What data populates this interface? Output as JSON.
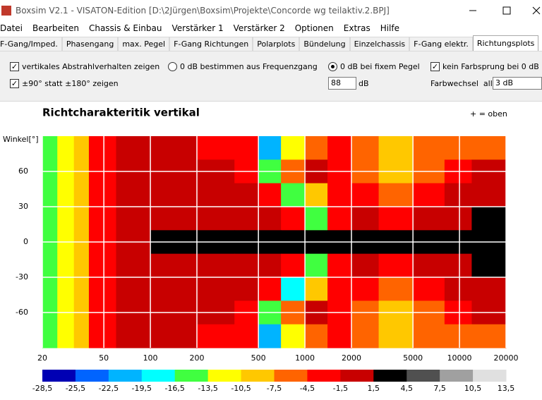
{
  "window": {
    "title": "Boxsim V2.1 - VISATON-Edition [D:\\2Jürgen\\Boxsim\\Projekte\\Concorde wg teilaktiv.2.BPJ]"
  },
  "menu": [
    "Datei",
    "Bearbeiten",
    "Chassis & Einbau",
    "Verstärker 1",
    "Verstärker 2",
    "Optionen",
    "Extras",
    "Hilfe"
  ],
  "tabs": [
    {
      "label": "F-Gang/Imped.",
      "active": false
    },
    {
      "label": "Phasengang",
      "active": false
    },
    {
      "label": "max. Pegel",
      "active": false
    },
    {
      "label": "F-Gang Richtungen",
      "active": false
    },
    {
      "label": "Polarplots",
      "active": false
    },
    {
      "label": "Bündelung",
      "active": false
    },
    {
      "label": "Einzelchassis",
      "active": false
    },
    {
      "label": "F-Gang elektr.",
      "active": false
    },
    {
      "label": "Richtungsplots",
      "active": true
    }
  ],
  "options": {
    "vertical": {
      "label": "vertikales Abstrahlverhalten zeigen",
      "checked": true
    },
    "range90": {
      "label": "±90° statt ±180° zeigen",
      "checked": true
    },
    "from_response": {
      "label": "0 dB bestimmen aus Frequenzgang",
      "checked": false
    },
    "fixed_level": {
      "label": "0 dB bei fixem Pegel",
      "checked": true
    },
    "level": "88",
    "level_unit": "dB",
    "no_jump": {
      "label": "kein Farbsprung bei 0 dB",
      "checked": true
    },
    "color_step_label": "Farbwechsel  alle",
    "color_step": "3 dB"
  },
  "chart_data": {
    "type": "heatmap",
    "title": "Richtcharakteritik vertikal",
    "note": "+ = oben",
    "y_label": "Winkel[°]",
    "log_x": true,
    "xlim": [
      20,
      20000
    ],
    "ylim": [
      -90,
      90
    ],
    "xticks": [
      20,
      50,
      100,
      200,
      500,
      1000,
      2000,
      5000,
      10000,
      20000
    ],
    "yticks": [
      60,
      30,
      0,
      -30,
      -60
    ],
    "grid_color": "#ffffff",
    "x_edges": [
      20,
      25,
      32,
      40,
      60,
      100,
      200,
      350,
      500,
      700,
      1000,
      1400,
      2000,
      3000,
      5000,
      8000,
      12000,
      20000
    ],
    "y_edges": [
      90,
      70,
      50,
      30,
      10,
      -10,
      -30,
      -50,
      -70,
      -90
    ],
    "z": [
      [
        -15,
        -11,
        -8,
        -3,
        -1,
        -1,
        -2,
        -4,
        -20,
        -12,
        -6,
        -4,
        -6,
        -9,
        -6,
        -5,
        -7
      ],
      [
        -15,
        -11,
        -8,
        -3,
        -1,
        0,
        -1,
        -3,
        -16,
        -6,
        0,
        -3,
        -5,
        -8,
        -5,
        -3,
        -1
      ],
      [
        -15,
        -11,
        -8,
        -3,
        -1,
        0,
        0,
        -1,
        -4,
        -16,
        -8,
        -2,
        -3,
        -6,
        -3,
        0,
        -1
      ],
      [
        -15,
        -11,
        -8,
        -3,
        -1,
        0,
        0,
        0,
        0,
        -2,
        -14,
        -4,
        -1,
        -3,
        -1,
        0,
        3
      ],
      [
        -15,
        -11,
        -8,
        -3,
        -1,
        2,
        3,
        3,
        3,
        3,
        3,
        3,
        3,
        3,
        2,
        3,
        3
      ],
      [
        -15,
        -11,
        -8,
        -3,
        -1,
        0,
        0,
        0,
        0,
        -2,
        -14,
        -4,
        -1,
        -3,
        -1,
        0,
        3
      ],
      [
        -15,
        -11,
        -8,
        -3,
        -1,
        0,
        0,
        -1,
        -4,
        -18,
        -8,
        -2,
        -3,
        -6,
        -3,
        0,
        -1
      ],
      [
        -15,
        -11,
        -8,
        -3,
        -1,
        0,
        -1,
        -3,
        -16,
        -6,
        0,
        -3,
        -5,
        -8,
        -5,
        -3,
        -1
      ],
      [
        -15,
        -11,
        -8,
        -3,
        -1,
        -1,
        -2,
        -4,
        -20,
        -12,
        -6,
        -4,
        -6,
        -9,
        -6,
        -5,
        -7
      ]
    ],
    "colorbar": {
      "levels": [
        {
          "value": -28.5,
          "label": "-28,5"
        },
        {
          "value": -25.5,
          "label": "-25,5"
        },
        {
          "value": -22.5,
          "label": "-22,5"
        },
        {
          "value": -19.5,
          "label": "-19,5"
        },
        {
          "value": -16.5,
          "label": "-16,5"
        },
        {
          "value": -13.5,
          "label": "-13,5"
        },
        {
          "value": -10.5,
          "label": "-10,5"
        },
        {
          "value": -7.5,
          "label": "-7,5"
        },
        {
          "value": -4.5,
          "label": "-4,5"
        },
        {
          "value": -1.5,
          "label": "-1,5"
        },
        {
          "value": 1.5,
          "label": "1,5"
        },
        {
          "value": 4.5,
          "label": "4,5"
        },
        {
          "value": 7.5,
          "label": "7,5"
        },
        {
          "value": 10.5,
          "label": "10,5"
        },
        {
          "value": 13.5,
          "label": "13,5"
        }
      ],
      "colors": [
        "#0000b4",
        "#0064ff",
        "#00b4ff",
        "#00ffff",
        "#40ff40",
        "#ffff00",
        "#ffc800",
        "#ff6400",
        "#ff0000",
        "#c80000",
        "#000000",
        "#505050",
        "#a0a0a0",
        "#e0e0e0"
      ]
    }
  }
}
